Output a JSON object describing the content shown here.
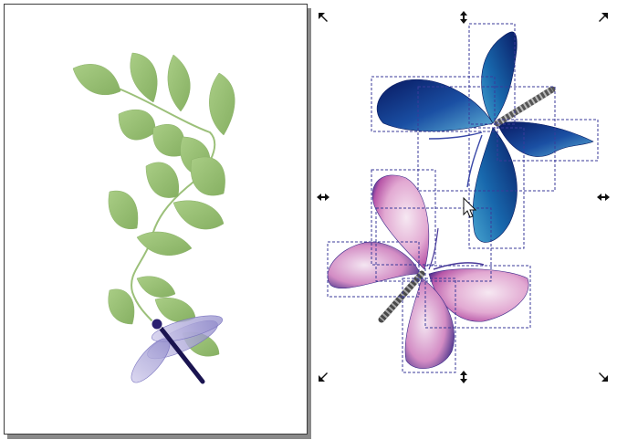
{
  "canvas": {
    "page_color": "#ffffff",
    "border_color": "#3c3c3c",
    "shadow_color": "#8a8a8a"
  },
  "selection": {
    "bbox_color": "#3a3a9a",
    "handle_color": "#111111",
    "handle_icons": [
      "scale-arrow-nw-icon",
      "scale-arrow-n-icon",
      "scale-arrow-ne-icon",
      "scale-arrow-w-icon",
      "scale-arrow-e-icon",
      "scale-arrow-sw-icon",
      "scale-arrow-s-icon",
      "scale-arrow-se-icon"
    ]
  },
  "artwork": {
    "leaf_color": "#9fc27a",
    "leaf_dark": "#6f9a4c",
    "blue_butterfly": [
      "#0a1a6b",
      "#1b5fb0",
      "#6fb8d8"
    ],
    "pink_butterfly": [
      "#2a1a7a",
      "#c04fa8",
      "#f3dbea"
    ],
    "dragonfly_body": "#1a1450"
  },
  "cursor": {
    "icon": "mouse-pointer-icon"
  }
}
